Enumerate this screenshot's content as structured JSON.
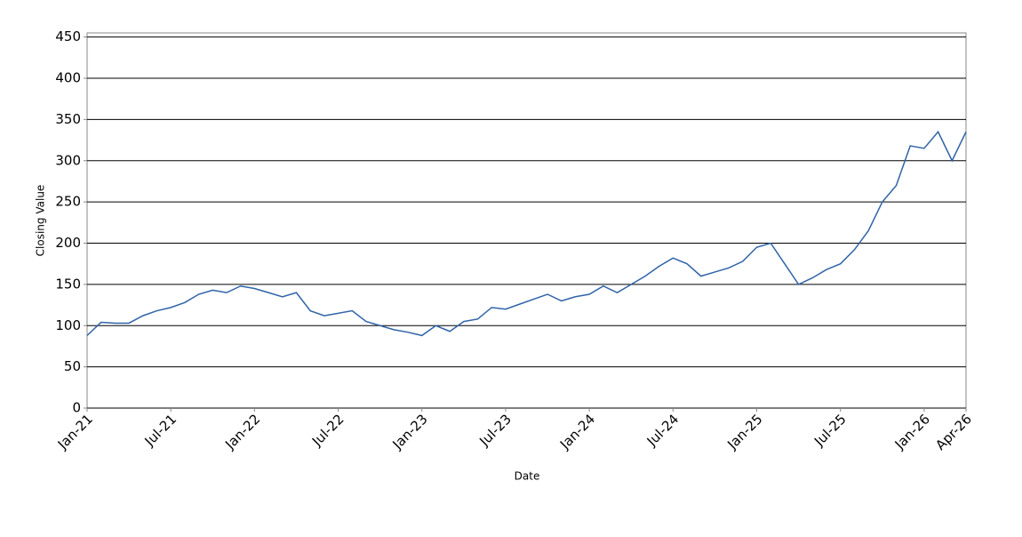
{
  "chart_data": {
    "type": "line",
    "x_label": "Date",
    "y_label": "Closing Value",
    "x": [
      "2021-01",
      "2021-02",
      "2021-03",
      "2021-04",
      "2021-05",
      "2021-06",
      "2021-07",
      "2021-08",
      "2021-09",
      "2021-10",
      "2021-11",
      "2021-12",
      "2022-01",
      "2022-02",
      "2022-03",
      "2022-04",
      "2022-05",
      "2022-06",
      "2022-07",
      "2022-08",
      "2022-09",
      "2022-10",
      "2022-11",
      "2022-12",
      "2023-01",
      "2023-02",
      "2023-03",
      "2023-04",
      "2023-05",
      "2023-06",
      "2023-07",
      "2023-08",
      "2023-09",
      "2023-10",
      "2023-11",
      "2023-12",
      "2024-01",
      "2024-02",
      "2024-03",
      "2024-04",
      "2024-05",
      "2024-06",
      "2024-07",
      "2024-08",
      "2024-09",
      "2024-10",
      "2024-11",
      "2024-12",
      "2025-01",
      "2025-02",
      "2025-03",
      "2025-04",
      "2025-05",
      "2025-06",
      "2025-07",
      "2025-08",
      "2025-09",
      "2025-10",
      "2025-11",
      "2025-12",
      "2026-01",
      "2026-02",
      "2026-03",
      "2026-04"
    ],
    "series": [
      {
        "color": "#2f63a8",
        "values": [
          88,
          104,
          103,
          103,
          112,
          118,
          122,
          128,
          138,
          143,
          140,
          148,
          145,
          140,
          135,
          140,
          118,
          112,
          115,
          118,
          105,
          100,
          95,
          92,
          88,
          100,
          93,
          105,
          108,
          122,
          120,
          126,
          132,
          138,
          130,
          135,
          138,
          148,
          140,
          150,
          160,
          172,
          182,
          175,
          160,
          165,
          170,
          178,
          195,
          200,
          175,
          150,
          158,
          168,
          175,
          192,
          215,
          250,
          270,
          318,
          315,
          335,
          300,
          335
        ]
      }
    ],
    "xlim": [
      "2021-01",
      "2026-04"
    ],
    "xticks": [
      {
        "value": "2021-01",
        "label": "Jan-21"
      },
      {
        "value": "2021-07",
        "label": "Jul-21"
      },
      {
        "value": "2022-01",
        "label": "Jan-22"
      },
      {
        "value": "2022-07",
        "label": "Jul-22"
      },
      {
        "value": "2023-01",
        "label": "Jan-23"
      },
      {
        "value": "2023-07",
        "label": "Jul-23"
      },
      {
        "value": "2024-01",
        "label": "Jan-24"
      },
      {
        "value": "2024-07",
        "label": "Jul-24"
      },
      {
        "value": "2025-01",
        "label": "Jan-25"
      },
      {
        "value": "2025-07",
        "label": "Jul-25"
      },
      {
        "value": "2026-01",
        "label": "Jan-26"
      },
      {
        "value": "2026-04",
        "label": "Apr-26"
      }
    ],
    "ylim": [
      0,
      455
    ],
    "yticks": [
      0,
      50,
      100,
      150,
      200,
      250,
      300,
      350,
      400,
      450
    ],
    "grid": true
  }
}
